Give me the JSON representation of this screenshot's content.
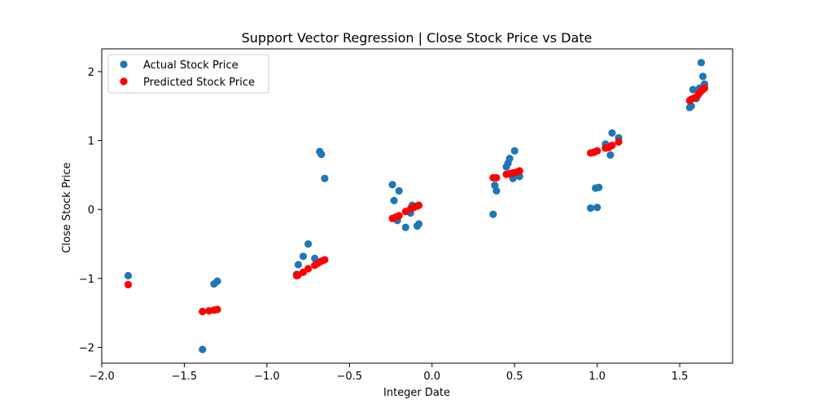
{
  "chart_data": {
    "type": "scatter",
    "title": "Support Vector Regression | Close Stock Price vs Date",
    "xlabel": "Integer Date",
    "ylabel": "Close Stock Price",
    "xlim": [
      -2.0,
      1.82
    ],
    "ylim": [
      -2.23,
      2.33
    ],
    "xticks": [
      -2.0,
      -1.5,
      -1.0,
      -0.5,
      0.0,
      0.5,
      1.0,
      1.5
    ],
    "xtick_labels": [
      "−2.0",
      "−1.5",
      "−1.0",
      "−0.5",
      "0.0",
      "0.5",
      "1.0",
      "1.5"
    ],
    "yticks": [
      -2,
      -1,
      0,
      1,
      2
    ],
    "ytick_labels": [
      "−2",
      "−1",
      "0",
      "1",
      "2"
    ],
    "grid": false,
    "legend_position": "top-left",
    "series": [
      {
        "name": "Actual Stock Price",
        "color": "#1f77b4",
        "points": [
          [
            -1.84,
            -0.96
          ],
          [
            -1.39,
            -2.03
          ],
          [
            -1.32,
            -1.08
          ],
          [
            -1.3,
            -1.04
          ],
          [
            -0.82,
            -0.94
          ],
          [
            -0.81,
            -0.8
          ],
          [
            -0.78,
            -0.68
          ],
          [
            -0.75,
            -0.5
          ],
          [
            -0.71,
            -0.71
          ],
          [
            -0.68,
            0.84
          ],
          [
            -0.67,
            0.8
          ],
          [
            -0.65,
            0.45
          ],
          [
            -0.24,
            0.36
          ],
          [
            -0.23,
            0.13
          ],
          [
            -0.21,
            -0.16
          ],
          [
            -0.2,
            0.27
          ],
          [
            -0.16,
            -0.26
          ],
          [
            -0.13,
            -0.05
          ],
          [
            -0.12,
            0.06
          ],
          [
            -0.09,
            -0.24
          ],
          [
            -0.08,
            -0.21
          ],
          [
            0.37,
            -0.07
          ],
          [
            0.38,
            0.35
          ],
          [
            0.39,
            0.27
          ],
          [
            0.45,
            0.62
          ],
          [
            0.46,
            0.67
          ],
          [
            0.47,
            0.74
          ],
          [
            0.49,
            0.45
          ],
          [
            0.5,
            0.85
          ],
          [
            0.52,
            0.5
          ],
          [
            0.53,
            0.48
          ],
          [
            0.96,
            0.02
          ],
          [
            0.99,
            0.31
          ],
          [
            1.0,
            0.03
          ],
          [
            1.01,
            0.32
          ],
          [
            1.05,
            0.95
          ],
          [
            1.08,
            0.79
          ],
          [
            1.09,
            1.11
          ],
          [
            1.13,
            1.04
          ],
          [
            1.56,
            1.48
          ],
          [
            1.57,
            1.5
          ],
          [
            1.58,
            1.74
          ],
          [
            1.6,
            1.61
          ],
          [
            1.62,
            1.76
          ],
          [
            1.63,
            2.13
          ],
          [
            1.64,
            1.93
          ],
          [
            1.65,
            1.82
          ]
        ]
      },
      {
        "name": "Predicted Stock Price",
        "color": "#ff0000",
        "points": [
          [
            -1.84,
            -1.09
          ],
          [
            -1.39,
            -1.48
          ],
          [
            -1.35,
            -1.47
          ],
          [
            -1.32,
            -1.46
          ],
          [
            -1.3,
            -1.45
          ],
          [
            -0.82,
            -0.96
          ],
          [
            -0.81,
            -0.95
          ],
          [
            -0.78,
            -0.91
          ],
          [
            -0.75,
            -0.86
          ],
          [
            -0.71,
            -0.81
          ],
          [
            -0.69,
            -0.78
          ],
          [
            -0.67,
            -0.75
          ],
          [
            -0.65,
            -0.73
          ],
          [
            -0.24,
            -0.13
          ],
          [
            -0.22,
            -0.11
          ],
          [
            -0.2,
            -0.09
          ],
          [
            -0.16,
            -0.03
          ],
          [
            -0.13,
            0.01
          ],
          [
            -0.11,
            0.03
          ],
          [
            -0.09,
            0.05
          ],
          [
            -0.08,
            0.06
          ],
          [
            0.37,
            0.46
          ],
          [
            0.39,
            0.46
          ],
          [
            0.45,
            0.51
          ],
          [
            0.47,
            0.52
          ],
          [
            0.49,
            0.53
          ],
          [
            0.51,
            0.54
          ],
          [
            0.53,
            0.56
          ],
          [
            0.96,
            0.82
          ],
          [
            0.98,
            0.83
          ],
          [
            1.0,
            0.85
          ],
          [
            1.05,
            0.89
          ],
          [
            1.07,
            0.9
          ],
          [
            1.09,
            0.93
          ],
          [
            1.13,
            0.98
          ],
          [
            1.56,
            1.58
          ],
          [
            1.57,
            1.6
          ],
          [
            1.59,
            1.62
          ],
          [
            1.61,
            1.66
          ],
          [
            1.62,
            1.69
          ],
          [
            1.63,
            1.72
          ],
          [
            1.64,
            1.74
          ],
          [
            1.65,
            1.76
          ]
        ]
      }
    ]
  }
}
